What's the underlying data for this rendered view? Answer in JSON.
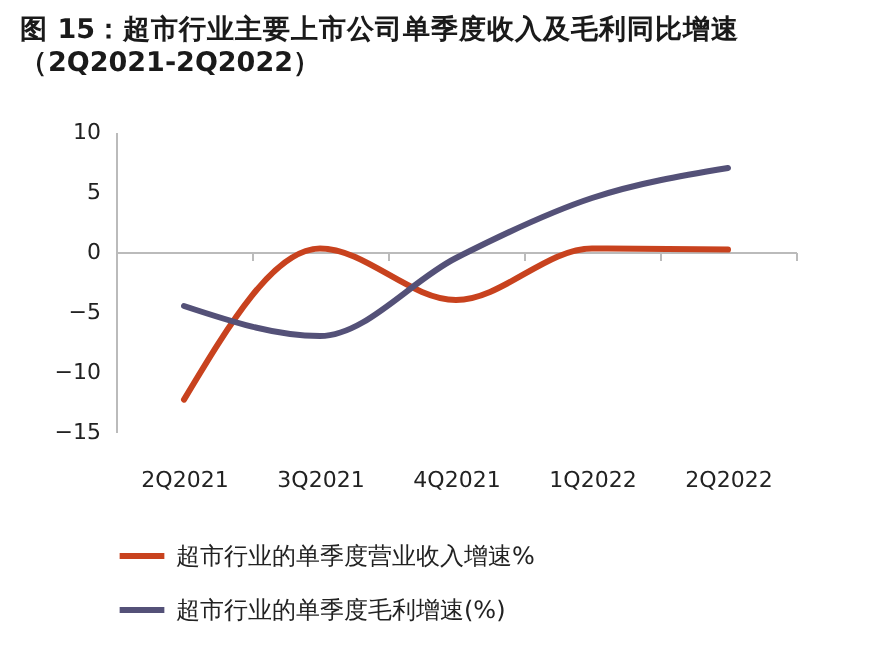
{
  "chart_data": {
    "type": "line",
    "title": "图 15：超市行业主要上市公司单季度收入及毛利同比增速",
    "subtitle": "（2Q2021-2Q2022）",
    "categories": [
      "2Q2021",
      "3Q2021",
      "4Q2021",
      "1Q2022",
      "2Q2022"
    ],
    "series": [
      {
        "name": "超市行业的单季度营业收入增速%",
        "color": "#c8421e",
        "values": [
          -12.3,
          0.3,
          -4.0,
          0.3,
          0.2
        ]
      },
      {
        "name": "超市行业的单季度毛利增速(%)",
        "color": "#545178",
        "values": [
          -4.5,
          -7.0,
          -0.5,
          4.5,
          7.0
        ]
      }
    ],
    "ylim": [
      -15,
      10
    ],
    "yticks": [
      -15,
      -10,
      -5,
      0,
      5,
      10
    ],
    "legend": "bottom",
    "marker": "none",
    "line_style": "solid"
  }
}
